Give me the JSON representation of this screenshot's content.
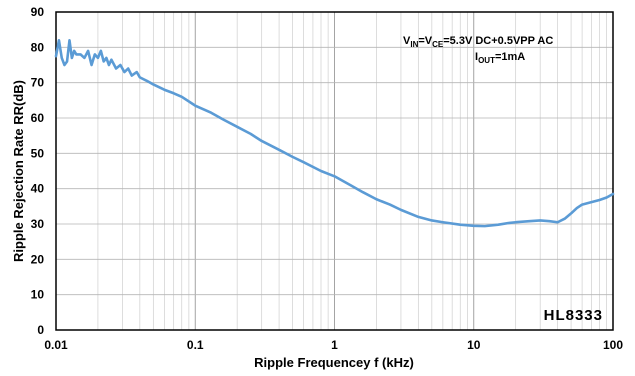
{
  "chart_data": {
    "type": "line",
    "title": "",
    "xlabel": "Ripple Frequencey f (kHz)",
    "ylabel": "Ripple Rejection Rate RR(dB)",
    "x_scale": "log",
    "xlim": [
      0.01,
      100
    ],
    "ylim": [
      0,
      90
    ],
    "x_ticks": [
      "0.01",
      "0.1",
      "1",
      "10",
      "100"
    ],
    "y_ticks": [
      "0",
      "10",
      "20",
      "30",
      "40",
      "50",
      "60",
      "70",
      "80",
      "90"
    ],
    "grid": true,
    "line_color": "#5b9bd5",
    "annotation": {
      "l1_a": "V",
      "l1_a_sub": "IN",
      "l1_b": "=V",
      "l1_b_sub": "CE",
      "l1_c": "=5.3V  DC+0.5VPP  AC",
      "l2_a": "I",
      "l2_a_sub": "OUT",
      "l2_b": "=1mA"
    },
    "brand": "HL8333",
    "series": [
      {
        "x": [
          0.01,
          0.0105,
          0.011,
          0.0115,
          0.012,
          0.0125,
          0.013,
          0.0135,
          0.014,
          0.015,
          0.016,
          0.017,
          0.018,
          0.019,
          0.02,
          0.021,
          0.022,
          0.023,
          0.024,
          0.025,
          0.027,
          0.029,
          0.031,
          0.033,
          0.035,
          0.038,
          0.04,
          0.045,
          0.05,
          0.06,
          0.07,
          0.08,
          0.1,
          0.13,
          0.16,
          0.2,
          0.25,
          0.3,
          0.4,
          0.5,
          0.6,
          0.8,
          1.0,
          1.3,
          1.6,
          2.0,
          2.5,
          3.0,
          4.0,
          5.0,
          6.0,
          8.0,
          10.0,
          12.0,
          15.0,
          18.0,
          20.0,
          25.0,
          30.0,
          35.0,
          40.0,
          45.0,
          50.0,
          55.0,
          60.0,
          70.0,
          80.0,
          90.0,
          100.0
        ],
        "y": [
          77.5,
          82,
          77,
          75,
          76,
          82,
          77,
          79,
          78,
          78,
          77,
          79,
          75,
          78,
          77,
          79,
          76,
          77,
          75,
          76.5,
          74,
          75,
          73,
          74,
          72,
          73,
          71.5,
          70.5,
          69.5,
          68,
          67,
          66,
          63.5,
          61.5,
          59.5,
          57.5,
          55.5,
          53.5,
          51,
          49,
          47.5,
          45,
          43.5,
          41,
          39,
          37,
          35.5,
          34,
          32,
          31,
          30.5,
          29.8,
          29.5,
          29.4,
          29.8,
          30.3,
          30.5,
          30.8,
          31,
          30.8,
          30.5,
          31.5,
          33,
          34.5,
          35.5,
          36.2,
          36.8,
          37.5,
          38.5
        ]
      }
    ]
  }
}
